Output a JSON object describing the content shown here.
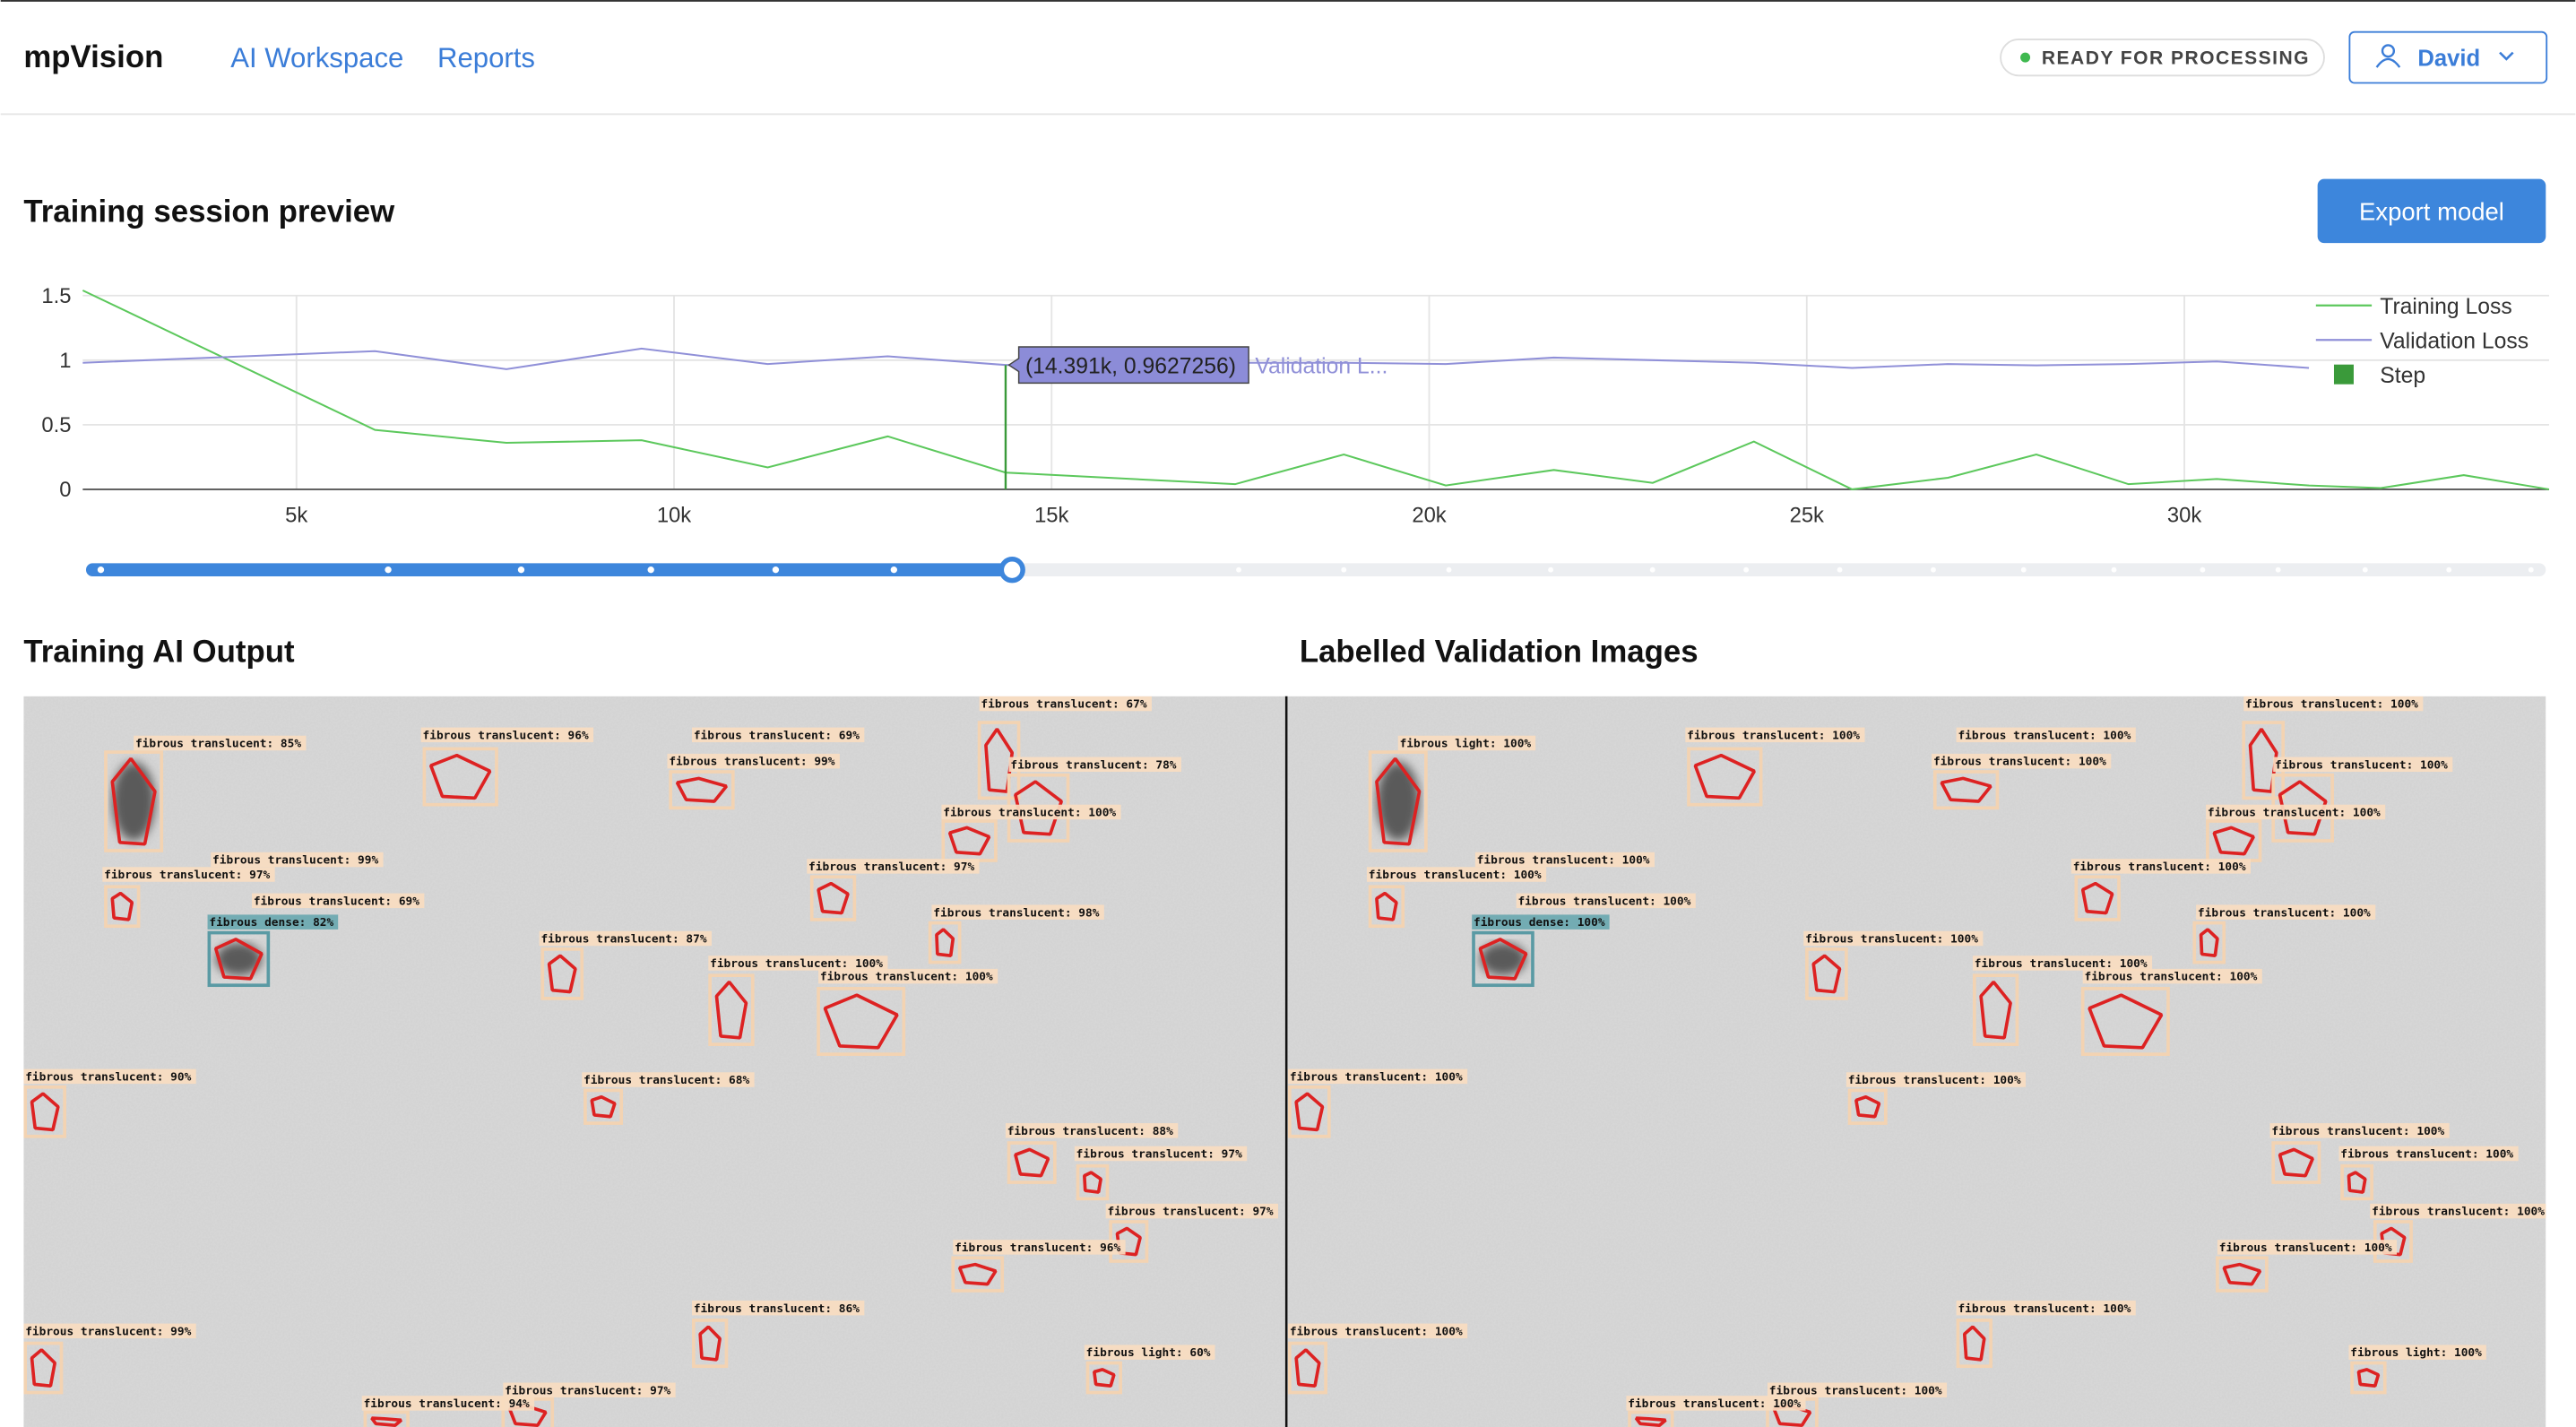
{
  "header": {
    "brand": "mpVision",
    "nav": [
      "AI Workspace",
      "Reports"
    ],
    "status": "READY FOR PROCESSING",
    "user": "David"
  },
  "section": {
    "title": "Training session preview",
    "button": "Export model"
  },
  "chart_data": {
    "type": "line",
    "x": [
      2170,
      6040,
      7780,
      9570,
      11240,
      12830,
      14391,
      17430,
      18870,
      20220,
      21650,
      22960,
      24300,
      25600,
      26870,
      28040,
      29260,
      30430,
      31650,
      32600,
      33700,
      34830
    ],
    "series": [
      {
        "name": "Training Loss",
        "color": "#5cc85c",
        "values": [
          1.54,
          0.46,
          0.36,
          0.38,
          0.17,
          0.41,
          0.13,
          0.04,
          0.27,
          0.03,
          0.15,
          0.05,
          0.37,
          0,
          0.09,
          0.27,
          0.04,
          0.08,
          0.03,
          0.01,
          0.11,
          0
        ]
      },
      {
        "name": "Validation Loss",
        "color": "#9090d8",
        "values": [
          0.98,
          1.07,
          0.93,
          1.09,
          0.97,
          1.03,
          0.9627256,
          0.98,
          0.98,
          0.97,
          1.02,
          1.0,
          0.98,
          0.94,
          0.97,
          0.96,
          0.97,
          0.99,
          0.94,
          null,
          null,
          null
        ]
      }
    ],
    "xlim": [
      2170,
      34830
    ],
    "xticks": [
      {
        "value": 5000,
        "label": "5k"
      },
      {
        "value": 10000,
        "label": "10k"
      },
      {
        "value": 15000,
        "label": "15k"
      },
      {
        "value": 20000,
        "label": "20k"
      },
      {
        "value": 25000,
        "label": "25k"
      },
      {
        "value": 30000,
        "label": "30k"
      }
    ],
    "ylim": [
      0,
      1.5
    ],
    "yticks": [
      0,
      0.5,
      1,
      1.5
    ],
    "grid": true,
    "legend": "top-right",
    "step": {
      "name": "Step",
      "color": "#3a9a3a",
      "x": 14391
    },
    "tooltip": {
      "text": "(14.391k, 0.9627256)",
      "series_label": "Validation L..."
    }
  },
  "panels": [
    {
      "title": "Training AI Output",
      "detections": [
        "fibrous translucent: 85%",
        "fibrous translucent: 96%",
        "fibrous translucent: 99%",
        "fibrous translucent: 69%",
        "fibrous translucent: 67%",
        "fibrous translucent: 78%",
        "fibrous translucent: 100%",
        "fibrous translucent: 99%",
        "fibrous translucent: 97%",
        "fibrous translucent: 69%",
        "fibrous dense: 82%",
        "fibrous translucent: 97%",
        "fibrous translucent: 98%",
        "fibrous translucent: 87%",
        "fibrous translucent: 100%",
        "fibrous translucent: 100%",
        "fibrous translucent: 90%",
        "fibrous translucent: 68%",
        "fibrous translucent: 88%",
        "fibrous translucent: 97%",
        "fibrous translucent: 97%",
        "fibrous translucent: 96%",
        "fibrous translucent: 99%",
        "fibrous translucent: 86%",
        "fibrous light: 60%",
        "fibrous translucent: 97%",
        "fibrous translucent: 94%"
      ]
    },
    {
      "title": "Labelled Validation Images",
      "detections": [
        "fibrous light: 100%",
        "fibrous translucent: 100%",
        "fibrous translucent: 100%",
        "fibrous translucent: 100%",
        "fibrous translucent: 100%",
        "fibrous translucent: 100%",
        "fibrous translucent: 100%",
        "fibrous translucent: 100%",
        "fibrous translucent: 100%",
        "fibrous translucent: 100%",
        "fibrous dense: 100%",
        "fibrous translucent: 100%",
        "fibrous translucent: 100%",
        "fibrous translucent: 100%",
        "fibrous translucent: 100%",
        "fibrous translucent: 100%",
        "fibrous translucent: 100%",
        "fibrous translucent: 100%",
        "fibrous translucent: 100%",
        "fibrous translucent: 100%",
        "fibrous translucent: 100%",
        "fibrous translucent: 100%",
        "fibrous translucent: 100%",
        "fibrous translucent: 100%",
        "fibrous light: 100%",
        "fibrous translucent: 100%",
        "fibrous translucent: 100%"
      ]
    }
  ]
}
